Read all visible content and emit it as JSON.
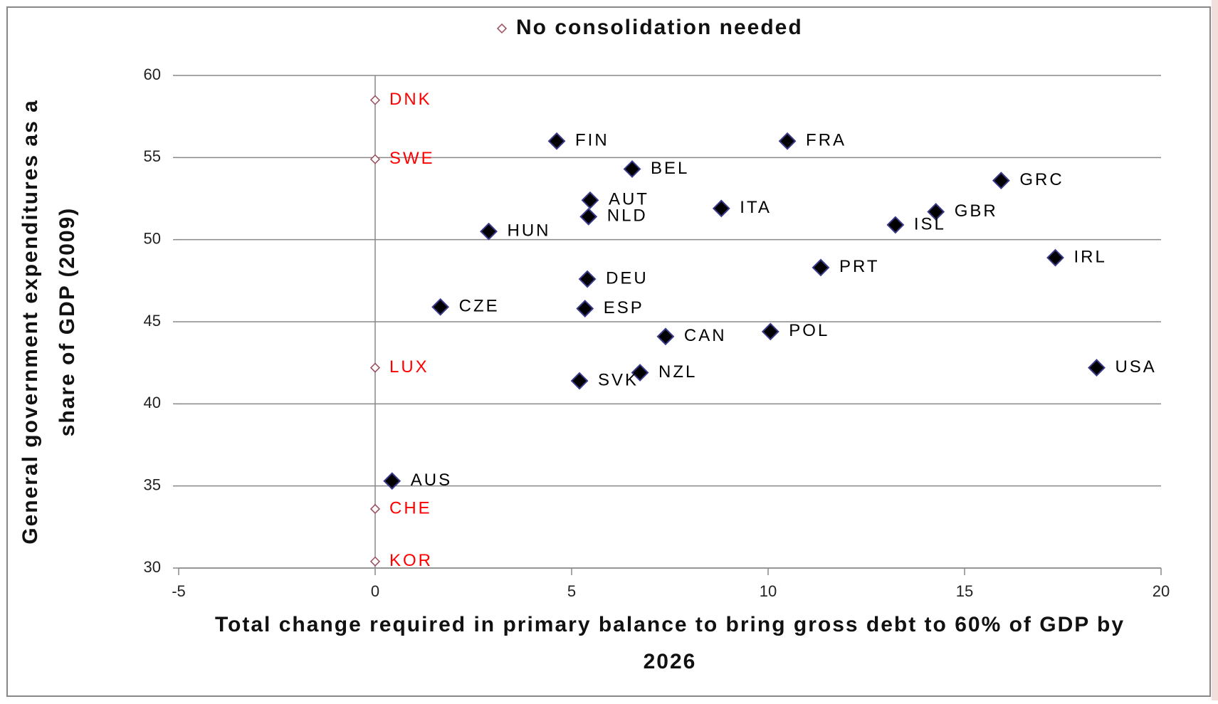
{
  "chart_data": {
    "type": "scatter",
    "xlabel": "Total change required in primary balance to bring gross debt to 60% of GDP by 2026",
    "ylabel": "General government expenditures as a share of GDP (2009)",
    "xlim": [
      -5,
      20
    ],
    "xticks": [
      -5,
      0,
      5,
      10,
      15,
      20
    ],
    "ylim": [
      30,
      60
    ],
    "yticks": [
      30,
      35,
      40,
      45,
      50,
      55,
      60
    ],
    "grid": true,
    "legend": "top",
    "series": [
      {
        "name": "No consolidation needed",
        "color": "#9c4a5a",
        "label_color": "#ff0000",
        "hollow": true,
        "labels": [
          "DNK",
          "SWE",
          "LUX",
          "CHE",
          "KOR"
        ],
        "x": [
          0,
          0,
          0,
          0,
          0
        ],
        "values": [
          58.5,
          54.9,
          42.2,
          33.6,
          30.4
        ]
      },
      {
        "color": "#000000",
        "label_color": "#000000",
        "hollow": false,
        "labels": [
          "FIN",
          "FRA",
          "BEL",
          "GRC",
          "AUT",
          "ITA",
          "GBR",
          "NLD",
          "ISL",
          "HUN",
          "IRL",
          "PRT",
          "DEU",
          "CZE",
          "ESP",
          "CAN",
          "POL",
          "USA",
          "NZL",
          "SVK",
          "AUS"
        ],
        "x": [
          4.62,
          10.49,
          6.54,
          15.93,
          5.47,
          8.81,
          14.27,
          5.43,
          13.24,
          2.89,
          17.31,
          11.34,
          5.4,
          1.66,
          5.34,
          7.39,
          10.06,
          18.36,
          6.74,
          5.2,
          0.43
        ],
        "values": [
          56.0,
          56.0,
          54.3,
          53.6,
          52.4,
          51.9,
          51.7,
          51.4,
          50.9,
          50.5,
          48.9,
          48.3,
          47.6,
          45.9,
          45.8,
          44.1,
          44.4,
          42.2,
          41.9,
          41.4,
          35.3
        ]
      }
    ]
  }
}
